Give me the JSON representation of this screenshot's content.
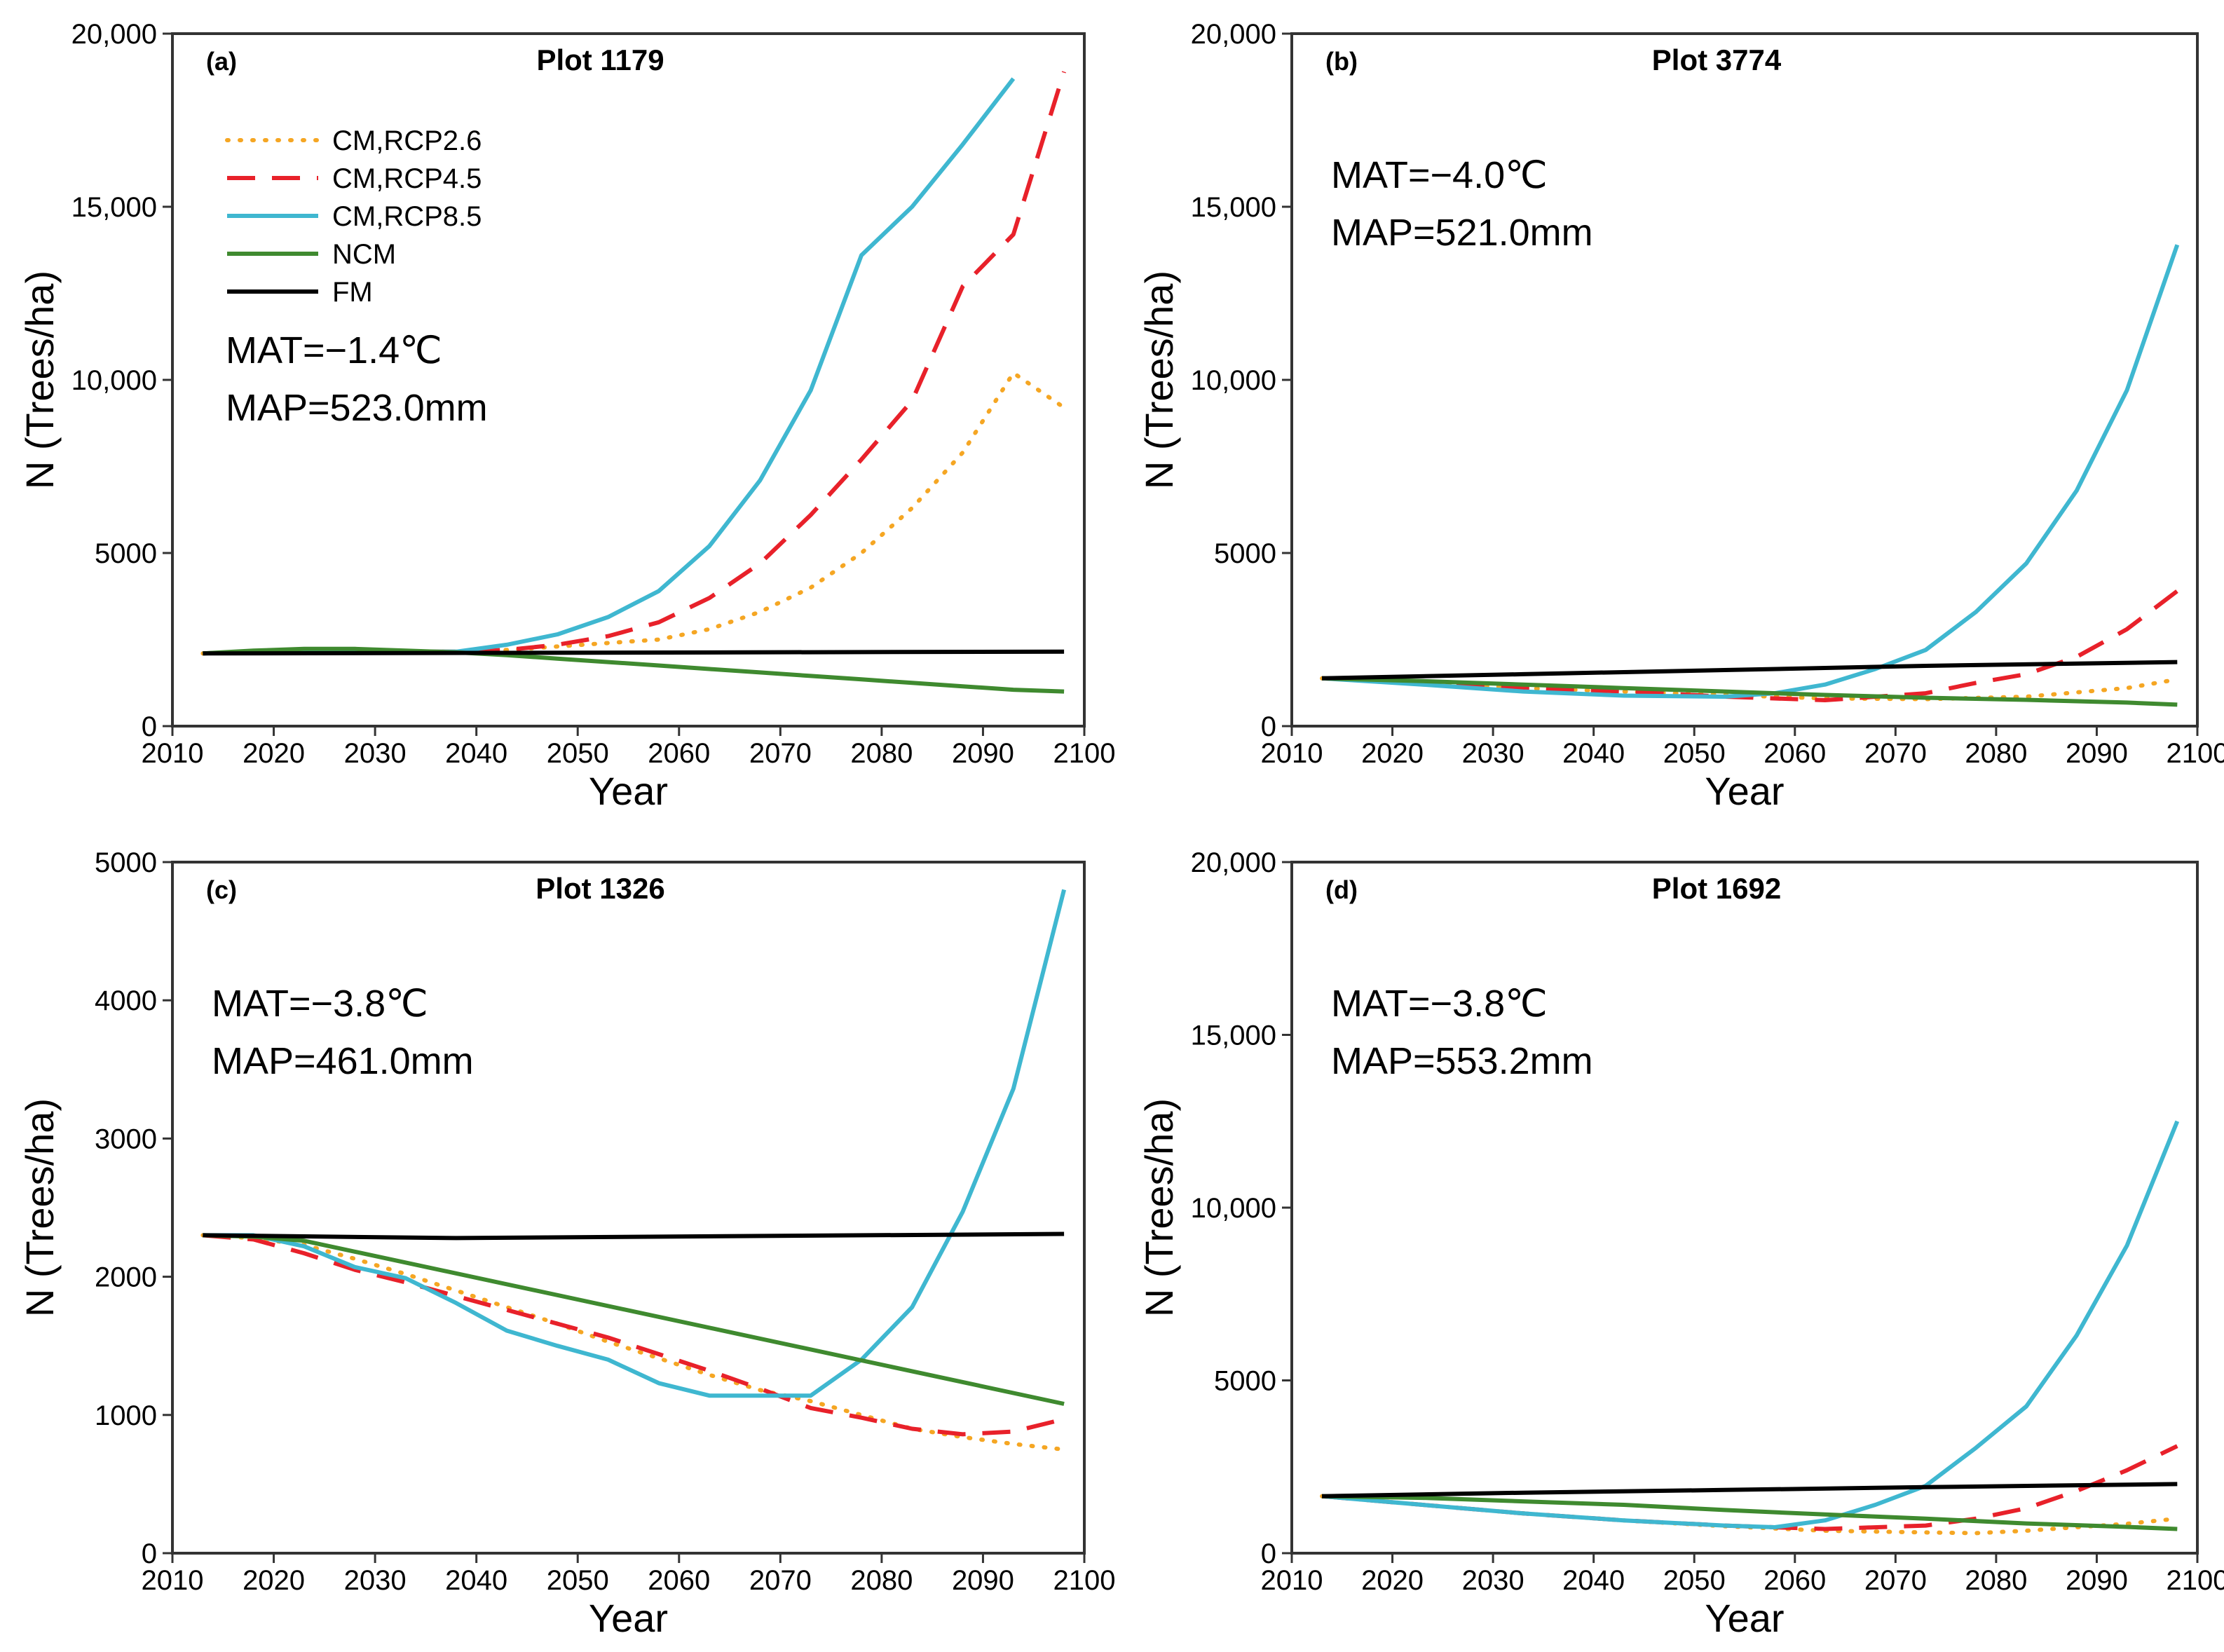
{
  "series_meta": [
    {
      "key": "rcp26",
      "name": "CM,RCP2.6",
      "color": "#F5A623",
      "dash": "dotted"
    },
    {
      "key": "rcp45",
      "name": "CM,RCP4.5",
      "color": "#E8212A",
      "dash": "dashed"
    },
    {
      "key": "rcp85",
      "name": "CM,RCP8.5",
      "color": "#3FB7D0",
      "dash": "solid"
    },
    {
      "key": "ncm",
      "name": "NCM",
      "color": "#3F8A2F",
      "dash": "solid"
    },
    {
      "key": "fm",
      "name": "FM",
      "color": "#000000",
      "dash": "solid"
    }
  ],
  "chart_data": [
    {
      "type": "line",
      "panel": "(a)",
      "title": "Plot 1179",
      "xlabel": "Year",
      "ylabel": "N (Trees/ha)",
      "xlim": [
        2010,
        2100
      ],
      "ylim": [
        0,
        20000
      ],
      "xticks": [
        2010,
        2020,
        2030,
        2040,
        2050,
        2060,
        2070,
        2080,
        2090,
        2100
      ],
      "yticks": [
        0,
        5000,
        10000,
        15000,
        20000
      ],
      "ytick_labels": [
        "0",
        "5000",
        "10,000",
        "15,000",
        "20,000"
      ],
      "annotation": [
        "MAT=−1.4℃",
        "MAP=523.0mm"
      ],
      "legend": true,
      "series": [
        {
          "key": "rcp26",
          "x": [
            2013,
            2018,
            2023,
            2028,
            2033,
            2038,
            2043,
            2048,
            2053,
            2058,
            2063,
            2068,
            2073,
            2078,
            2083,
            2088,
            2093,
            2098
          ],
          "y": [
            2100,
            2150,
            2200,
            2200,
            2150,
            2150,
            2200,
            2300,
            2400,
            2500,
            2800,
            3300,
            4000,
            5000,
            6300,
            7900,
            10200,
            9200
          ]
        },
        {
          "key": "rcp45",
          "x": [
            2013,
            2018,
            2023,
            2028,
            2033,
            2038,
            2043,
            2048,
            2053,
            2058,
            2063,
            2068,
            2073,
            2078,
            2083,
            2088,
            2093,
            2098
          ],
          "y": [
            2100,
            2150,
            2200,
            2200,
            2150,
            2150,
            2200,
            2350,
            2600,
            3000,
            3700,
            4700,
            6100,
            7700,
            9400,
            12700,
            14200,
            18900
          ]
        },
        {
          "key": "rcp85",
          "x": [
            2013,
            2018,
            2023,
            2028,
            2033,
            2038,
            2043,
            2048,
            2053,
            2058,
            2063,
            2068,
            2073,
            2078,
            2083,
            2088,
            2093
          ],
          "y": [
            2100,
            2150,
            2200,
            2200,
            2150,
            2150,
            2350,
            2650,
            3150,
            3900,
            5200,
            7100,
            9700,
            13600,
            15000,
            16800,
            18700
          ]
        },
        {
          "key": "ncm",
          "x": [
            2013,
            2018,
            2023,
            2028,
            2033,
            2038,
            2043,
            2048,
            2053,
            2058,
            2063,
            2068,
            2073,
            2078,
            2083,
            2088,
            2093,
            2098
          ],
          "y": [
            2100,
            2180,
            2230,
            2230,
            2180,
            2130,
            2050,
            1950,
            1850,
            1750,
            1650,
            1550,
            1450,
            1350,
            1250,
            1150,
            1050,
            1000
          ]
        },
        {
          "key": "fm",
          "x": [
            2013,
            2098
          ],
          "y": [
            2100,
            2150
          ]
        }
      ]
    },
    {
      "type": "line",
      "panel": "(b)",
      "title": "Plot 3774",
      "xlabel": "Year",
      "ylabel": "N (Trees/ha)",
      "xlim": [
        2010,
        2100
      ],
      "ylim": [
        0,
        20000
      ],
      "xticks": [
        2010,
        2020,
        2030,
        2040,
        2050,
        2060,
        2070,
        2080,
        2090,
        2100
      ],
      "yticks": [
        0,
        5000,
        10000,
        15000,
        20000
      ],
      "ytick_labels": [
        "0",
        "5000",
        "10,000",
        "15,000",
        "20,000"
      ],
      "annotation": [
        "MAT=−4.0℃",
        "MAP=521.0mm"
      ],
      "legend": false,
      "series": [
        {
          "key": "rcp26",
          "x": [
            2013,
            2023,
            2033,
            2043,
            2053,
            2063,
            2073,
            2083,
            2093,
            2098
          ],
          "y": [
            1380,
            1250,
            1100,
            1000,
            900,
            800,
            780,
            850,
            1100,
            1350
          ]
        },
        {
          "key": "rcp45",
          "x": [
            2013,
            2023,
            2033,
            2043,
            2053,
            2063,
            2073,
            2078,
            2083,
            2088,
            2093,
            2098
          ],
          "y": [
            1380,
            1250,
            1100,
            1000,
            850,
            750,
            950,
            1250,
            1500,
            2000,
            2800,
            3900
          ]
        },
        {
          "key": "rcp85",
          "x": [
            2013,
            2023,
            2033,
            2043,
            2053,
            2058,
            2063,
            2068,
            2073,
            2078,
            2083,
            2088,
            2093,
            2098
          ],
          "y": [
            1380,
            1200,
            1000,
            880,
            850,
            950,
            1200,
            1650,
            2200,
            3300,
            4700,
            6800,
            9700,
            13900
          ]
        },
        {
          "key": "ncm",
          "x": [
            2013,
            2023,
            2033,
            2043,
            2053,
            2063,
            2073,
            2083,
            2093,
            2098
          ],
          "y": [
            1380,
            1300,
            1200,
            1100,
            1000,
            900,
            820,
            760,
            680,
            620
          ]
        },
        {
          "key": "fm",
          "x": [
            2013,
            2033,
            2053,
            2073,
            2098
          ],
          "y": [
            1380,
            1500,
            1620,
            1740,
            1850
          ]
        }
      ]
    },
    {
      "type": "line",
      "panel": "(c)",
      "title": "Plot 1326",
      "xlabel": "Year",
      "ylabel": "N (Trees/ha)",
      "xlim": [
        2010,
        2100
      ],
      "ylim": [
        0,
        5000
      ],
      "xticks": [
        2010,
        2020,
        2030,
        2040,
        2050,
        2060,
        2070,
        2080,
        2090,
        2100
      ],
      "yticks": [
        0,
        1000,
        2000,
        3000,
        4000,
        5000
      ],
      "ytick_labels": [
        "0",
        "1000",
        "2000",
        "3000",
        "4000",
        "5000"
      ],
      "annotation": [
        "MAT=−3.8℃",
        "MAP=461.0mm"
      ],
      "legend": false,
      "series": [
        {
          "key": "rcp26",
          "x": [
            2013,
            2018,
            2023,
            2028,
            2033,
            2038,
            2043,
            2048,
            2053,
            2058,
            2063,
            2068,
            2073,
            2078,
            2083,
            2088,
            2093,
            2098
          ],
          "y": [
            2300,
            2280,
            2230,
            2130,
            2020,
            1900,
            1780,
            1660,
            1530,
            1410,
            1290,
            1180,
            1100,
            1000,
            900,
            840,
            790,
            750
          ]
        },
        {
          "key": "rcp45",
          "x": [
            2013,
            2018,
            2023,
            2028,
            2033,
            2038,
            2043,
            2048,
            2053,
            2058,
            2063,
            2068,
            2073,
            2078,
            2083,
            2088,
            2093,
            2098
          ],
          "y": [
            2300,
            2270,
            2170,
            2050,
            1960,
            1860,
            1760,
            1660,
            1560,
            1440,
            1320,
            1190,
            1050,
            980,
            900,
            860,
            880,
            970
          ]
        },
        {
          "key": "rcp85",
          "x": [
            2013,
            2018,
            2023,
            2028,
            2033,
            2038,
            2043,
            2048,
            2053,
            2058,
            2063,
            2068,
            2073,
            2078,
            2083,
            2088,
            2093,
            2098
          ],
          "y": [
            2300,
            2300,
            2220,
            2070,
            1990,
            1810,
            1610,
            1500,
            1400,
            1230,
            1140,
            1140,
            1140,
            1400,
            1780,
            2470,
            3360,
            4800
          ]
        },
        {
          "key": "ncm",
          "x": [
            2013,
            2018,
            2023,
            2098
          ],
          "y": [
            2300,
            2290,
            2260,
            1080
          ]
        },
        {
          "key": "fm",
          "x": [
            2013,
            2038,
            2098
          ],
          "y": [
            2300,
            2280,
            2310
          ]
        }
      ]
    },
    {
      "type": "line",
      "panel": "(d)",
      "title": "Plot 1692",
      "xlabel": "Year",
      "ylabel": "N (Trees/ha)",
      "xlim": [
        2010,
        2100
      ],
      "ylim": [
        0,
        20000
      ],
      "xticks": [
        2010,
        2020,
        2030,
        2040,
        2050,
        2060,
        2070,
        2080,
        2090,
        2100
      ],
      "yticks": [
        0,
        5000,
        10000,
        15000,
        20000
      ],
      "ytick_labels": [
        "0",
        "5000",
        "10,000",
        "15,000",
        "20,000"
      ],
      "annotation": [
        "MAT=−3.8℃",
        "MAP=553.2mm"
      ],
      "legend": false,
      "series": [
        {
          "key": "rcp26",
          "x": [
            2013,
            2023,
            2033,
            2043,
            2053,
            2063,
            2073,
            2078,
            2083,
            2088,
            2093,
            2098
          ],
          "y": [
            1650,
            1400,
            1150,
            950,
            780,
            650,
            600,
            580,
            650,
            750,
            850,
            1000
          ]
        },
        {
          "key": "rcp45",
          "x": [
            2013,
            2023,
            2033,
            2043,
            2053,
            2063,
            2073,
            2078,
            2083,
            2088,
            2093,
            2098
          ],
          "y": [
            1650,
            1400,
            1150,
            950,
            800,
            700,
            800,
            1000,
            1300,
            1800,
            2400,
            3100
          ]
        },
        {
          "key": "rcp85",
          "x": [
            2013,
            2023,
            2033,
            2043,
            2053,
            2058,
            2063,
            2068,
            2073,
            2078,
            2083,
            2088,
            2093,
            2098
          ],
          "y": [
            1650,
            1400,
            1150,
            950,
            800,
            750,
            950,
            1400,
            1950,
            3050,
            4250,
            6300,
            8900,
            12500
          ]
        },
        {
          "key": "ncm",
          "x": [
            2013,
            2023,
            2033,
            2043,
            2053,
            2063,
            2073,
            2083,
            2093,
            2098
          ],
          "y": [
            1650,
            1600,
            1500,
            1400,
            1250,
            1120,
            1000,
            860,
            760,
            700
          ]
        },
        {
          "key": "fm",
          "x": [
            2013,
            2033,
            2053,
            2073,
            2098
          ],
          "y": [
            1650,
            1750,
            1830,
            1910,
            2000
          ]
        }
      ]
    }
  ]
}
